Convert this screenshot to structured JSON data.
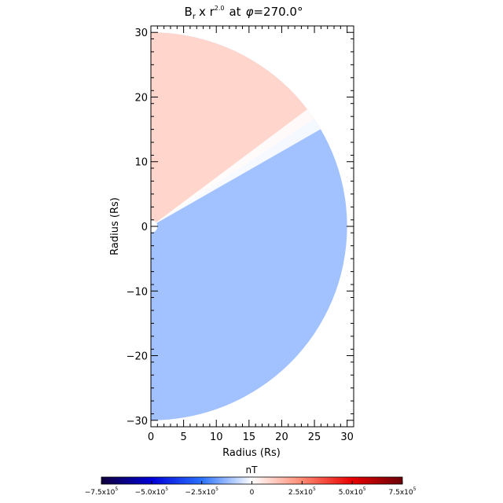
{
  "chart_data": {
    "type": "heatmap",
    "title": {
      "var": "B",
      "sub": "r",
      "op": "x r",
      "exp": "2.0",
      "mid": "at",
      "phi": "φ",
      "rest": "=270.0°"
    },
    "xlabel": "Radius (Rs)",
    "ylabel": "Radius (Rs)",
    "xlim": [
      0,
      31
    ],
    "ylim": [
      -31,
      31
    ],
    "xticks": [
      0,
      5,
      10,
      15,
      20,
      25,
      30
    ],
    "yticks": [
      -30,
      -20,
      -10,
      0,
      10,
      20,
      30
    ],
    "xtick_labels": [
      "0",
      "5",
      "10",
      "15",
      "20",
      "25",
      "30"
    ],
    "ytick_labels": [
      "−30",
      "−20",
      "−10",
      "0",
      "10",
      "20",
      "30"
    ],
    "domain": {
      "shape": "half-disk",
      "r_min": 1,
      "r_max": 30
    },
    "current_sheet_angle_deg": 33,
    "region_values": [
      {
        "region": "above current sheet (north)",
        "value": 90000
      },
      {
        "region": "below current sheet (south)",
        "value": -110000
      }
    ],
    "colorbar": {
      "label": "nT",
      "min": -750000,
      "max": 750000,
      "ticks": [
        -750000,
        -500000,
        -250000,
        0,
        250000,
        500000,
        750000
      ],
      "tick_labels": [
        {
          "mant": "−7.5x10",
          "exp": "5"
        },
        {
          "mant": "−5.0x10",
          "exp": "5"
        },
        {
          "mant": "−2.5x10",
          "exp": "5"
        },
        {
          "mant": "0",
          "exp": ""
        },
        {
          "mant": "2.5x10",
          "exp": "5"
        },
        {
          "mant": "5.0x10",
          "exp": "5"
        },
        {
          "mant": "7.5x10",
          "exp": "5"
        }
      ],
      "colors": [
        "#10003a",
        "#0000d8",
        "#2a72ff",
        "#ffffff",
        "#ff8a72",
        "#e80000",
        "#6a0008"
      ]
    }
  }
}
